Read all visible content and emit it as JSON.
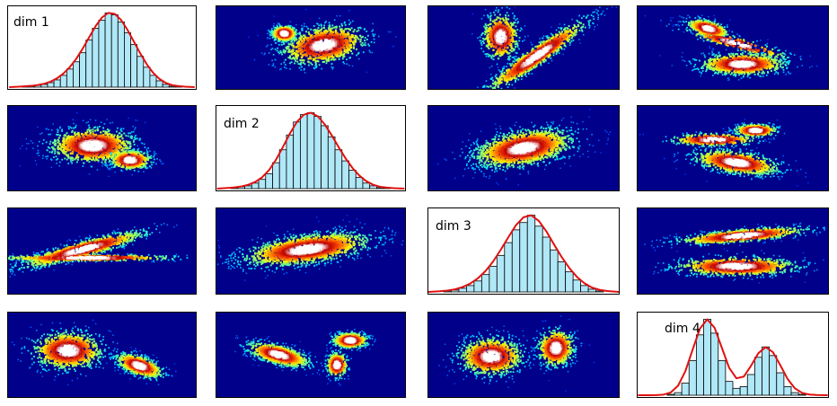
{
  "colors": {
    "hist_fill": "#b0e8f8",
    "hist_edge": "#000000",
    "fit_curve": "#e01010",
    "density_background": "#00008b",
    "colormap": "jet"
  },
  "chart_data": [
    {
      "type": "bar",
      "title": "",
      "label": "dim 1",
      "row": 1,
      "col": 1,
      "fit": "normal",
      "values": [
        0,
        1,
        1,
        2,
        3,
        5,
        8,
        13,
        20,
        28,
        38,
        52,
        65,
        74,
        82,
        80,
        72,
        60,
        47,
        34,
        22,
        13,
        7,
        3,
        1,
        1,
        0
      ]
    },
    {
      "type": "heatmap",
      "row": 1,
      "col": 2,
      "clusters": [
        {
          "x": 0.36,
          "y": 0.33,
          "sx": 0.035,
          "sy": 0.05,
          "rot": 0,
          "w": 0.35
        },
        {
          "x": 0.57,
          "y": 0.47,
          "sx": 0.12,
          "sy": 0.12,
          "rot": -10,
          "w": 0.65
        }
      ]
    },
    {
      "type": "heatmap",
      "row": 1,
      "col": 3,
      "clusters": [
        {
          "x": 0.38,
          "y": 0.37,
          "sx": 0.05,
          "sy": 0.15,
          "rot": 0,
          "w": 0.35
        },
        {
          "x": 0.57,
          "y": 0.6,
          "sx": 0.17,
          "sy": 0.06,
          "rot": -35,
          "w": 0.65
        }
      ]
    },
    {
      "type": "heatmap",
      "row": 1,
      "col": 4,
      "clusters": [
        {
          "x": 0.37,
          "y": 0.27,
          "sx": 0.06,
          "sy": 0.05,
          "rot": 15,
          "w": 0.3
        },
        {
          "x": 0.52,
          "y": 0.45,
          "sx": 0.15,
          "sy": 0.04,
          "rot": 15,
          "w": 0.15
        },
        {
          "x": 0.55,
          "y": 0.7,
          "sx": 0.12,
          "sy": 0.07,
          "rot": 0,
          "w": 0.55
        }
      ]
    },
    {
      "type": "heatmap",
      "row": 2,
      "col": 1,
      "clusters": [
        {
          "x": 0.45,
          "y": 0.47,
          "sx": 0.12,
          "sy": 0.11,
          "rot": 0,
          "w": 0.7
        },
        {
          "x": 0.65,
          "y": 0.64,
          "sx": 0.06,
          "sy": 0.06,
          "rot": 0,
          "w": 0.3
        }
      ]
    },
    {
      "type": "bar",
      "title": "",
      "label": "dim 2",
      "row": 2,
      "col": 2,
      "fit": "normal",
      "values": [
        0,
        1,
        2,
        3,
        6,
        10,
        16,
        28,
        42,
        58,
        72,
        80,
        82,
        78,
        68,
        56,
        42,
        30,
        20,
        12,
        6,
        3,
        1,
        1,
        0
      ]
    },
    {
      "type": "heatmap",
      "row": 2,
      "col": 3,
      "clusters": [
        {
          "x": 0.5,
          "y": 0.5,
          "sx": 0.14,
          "sy": 0.11,
          "rot": -10,
          "w": 1.0
        }
      ]
    },
    {
      "type": "heatmap",
      "row": 2,
      "col": 4,
      "clusters": [
        {
          "x": 0.62,
          "y": 0.29,
          "sx": 0.06,
          "sy": 0.04,
          "rot": 0,
          "w": 0.25
        },
        {
          "x": 0.4,
          "y": 0.4,
          "sx": 0.12,
          "sy": 0.04,
          "rot": 0,
          "w": 0.2
        },
        {
          "x": 0.52,
          "y": 0.67,
          "sx": 0.12,
          "sy": 0.07,
          "rot": 8,
          "w": 0.55
        }
      ]
    },
    {
      "type": "heatmap",
      "row": 3,
      "col": 1,
      "clusters": [
        {
          "x": 0.4,
          "y": 0.48,
          "sx": 0.18,
          "sy": 0.05,
          "rot": -15,
          "w": 0.65
        },
        {
          "x": 0.42,
          "y": 0.58,
          "sx": 0.25,
          "sy": 0.02,
          "rot": 0,
          "w": 0.35
        }
      ]
    },
    {
      "type": "heatmap",
      "row": 3,
      "col": 2,
      "clusters": [
        {
          "x": 0.48,
          "y": 0.48,
          "sx": 0.18,
          "sy": 0.09,
          "rot": -8,
          "w": 1.0
        }
      ]
    },
    {
      "type": "bar",
      "title": "",
      "label": "dim 3",
      "row": 3,
      "col": 3,
      "fit": "normal",
      "values": [
        0,
        1,
        2,
        4,
        7,
        12,
        19,
        28,
        40,
        54,
        68,
        76,
        84,
        72,
        60,
        46,
        33,
        22,
        13,
        7,
        3,
        1,
        0
      ]
    },
    {
      "type": "heatmap",
      "row": 3,
      "col": 4,
      "clusters": [
        {
          "x": 0.55,
          "y": 0.32,
          "sx": 0.18,
          "sy": 0.04,
          "rot": -5,
          "w": 0.45
        },
        {
          "x": 0.52,
          "y": 0.68,
          "sx": 0.17,
          "sy": 0.06,
          "rot": 0,
          "w": 0.55
        }
      ]
    },
    {
      "type": "heatmap",
      "row": 4,
      "col": 1,
      "clusters": [
        {
          "x": 0.32,
          "y": 0.45,
          "sx": 0.1,
          "sy": 0.12,
          "rot": 0,
          "w": 0.6
        },
        {
          "x": 0.7,
          "y": 0.63,
          "sx": 0.07,
          "sy": 0.06,
          "rot": 20,
          "w": 0.4
        }
      ]
    },
    {
      "type": "heatmap",
      "row": 4,
      "col": 2,
      "clusters": [
        {
          "x": 0.33,
          "y": 0.5,
          "sx": 0.09,
          "sy": 0.06,
          "rot": 15,
          "w": 0.5
        },
        {
          "x": 0.71,
          "y": 0.33,
          "sx": 0.05,
          "sy": 0.05,
          "rot": 0,
          "w": 0.3
        },
        {
          "x": 0.64,
          "y": 0.62,
          "sx": 0.03,
          "sy": 0.08,
          "rot": 0,
          "w": 0.2
        }
      ]
    },
    {
      "type": "heatmap",
      "row": 4,
      "col": 3,
      "clusters": [
        {
          "x": 0.33,
          "y": 0.52,
          "sx": 0.09,
          "sy": 0.12,
          "rot": 0,
          "w": 0.6
        },
        {
          "x": 0.67,
          "y": 0.42,
          "sx": 0.05,
          "sy": 0.12,
          "rot": 30,
          "w": 0.4
        }
      ]
    },
    {
      "type": "bar",
      "title": "",
      "label": "dim 4",
      "row": 4,
      "col": 4,
      "fit": "bimodal",
      "values": [
        0,
        0,
        0,
        1,
        3,
        14,
        40,
        70,
        88,
        72,
        40,
        16,
        8,
        10,
        24,
        44,
        56,
        46,
        26,
        10,
        3,
        1,
        0,
        0
      ]
    }
  ]
}
